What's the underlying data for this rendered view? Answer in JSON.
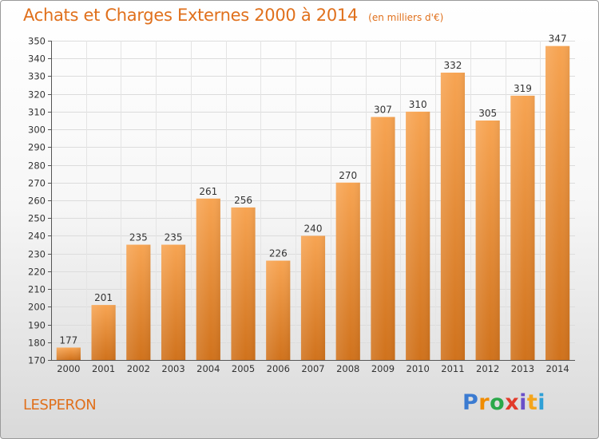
{
  "chart_data": {
    "type": "bar",
    "title": "Achats et Charges Externes 2000 à 2014",
    "subtitle": "(en milliers d'€)",
    "categories": [
      "2000",
      "2001",
      "2002",
      "2003",
      "2004",
      "2005",
      "2006",
      "2007",
      "2008",
      "2009",
      "2010",
      "2011",
      "2012",
      "2013",
      "2014"
    ],
    "values": [
      177,
      201,
      235,
      235,
      261,
      256,
      226,
      240,
      270,
      307,
      310,
      332,
      305,
      319,
      347
    ],
    "ylim": [
      170,
      350
    ],
    "ytick_step": 10,
    "xlabel": "",
    "ylabel": "",
    "grid": true,
    "bar_color_top": "#f7a452",
    "bar_color_bottom": "#d0721c",
    "data_labels": true
  },
  "commune": "LESPERON",
  "logo": {
    "letters": [
      "P",
      "r",
      "o",
      "x",
      "i",
      "t",
      "i"
    ]
  }
}
